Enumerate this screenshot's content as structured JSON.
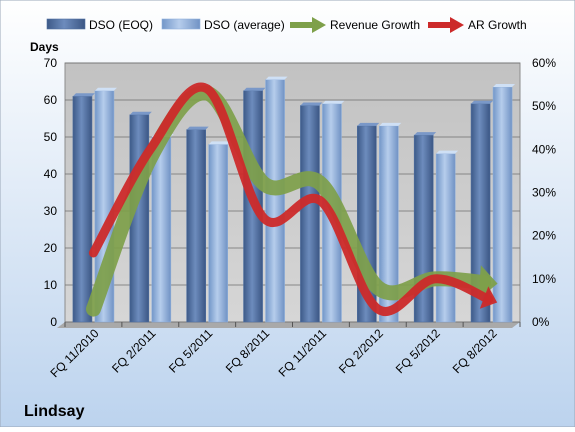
{
  "colors": {
    "dso_eoq": "#4f6fa0",
    "dso_average": "#8fb0dc",
    "revenue_growth": "#7ea04a",
    "ar_growth": "#cc2a2a",
    "plot_background": "#c8c8c8",
    "page_background_top": "#ffffff",
    "page_background_bottom": "#bcd3ee"
  },
  "chart_data": {
    "type": "bar",
    "title": "",
    "company": "Lindsay",
    "ylabel": "Days",
    "ylim": [
      0,
      70
    ],
    "yticks": [
      "0",
      "10",
      "20",
      "30",
      "40",
      "50",
      "60",
      "70"
    ],
    "y2lim": [
      0,
      60
    ],
    "y2ticks": [
      "0%",
      "10%",
      "20%",
      "30%",
      "40%",
      "50%",
      "60%"
    ],
    "categories": [
      "FQ 11/2010",
      "FQ 2/2011",
      "FQ 5/2011",
      "FQ 8/2011",
      "FQ 11/2011",
      "FQ 2/2012",
      "FQ 5/2012",
      "FQ 8/2012"
    ],
    "legend_position": "top",
    "grid": true,
    "series": [
      {
        "name": "DSO (EOQ)",
        "type": "bar",
        "axis": "left",
        "values": [
          61,
          56,
          52,
          62.5,
          58.5,
          53,
          50.5,
          59
        ]
      },
      {
        "name": "DSO (average)",
        "type": "bar",
        "axis": "left",
        "values": [
          62.5,
          50,
          48,
          65.5,
          59,
          53,
          45.5,
          63.5
        ]
      },
      {
        "name": "Revenue Growth",
        "type": "line",
        "axis": "right",
        "unit": "%",
        "values": [
          3,
          38,
          53,
          32,
          32,
          8,
          10,
          9
        ]
      },
      {
        "name": "AR Growth",
        "type": "line",
        "axis": "right",
        "unit": "%",
        "values": [
          16,
          40,
          54,
          24,
          28,
          3,
          10,
          5
        ]
      }
    ]
  }
}
